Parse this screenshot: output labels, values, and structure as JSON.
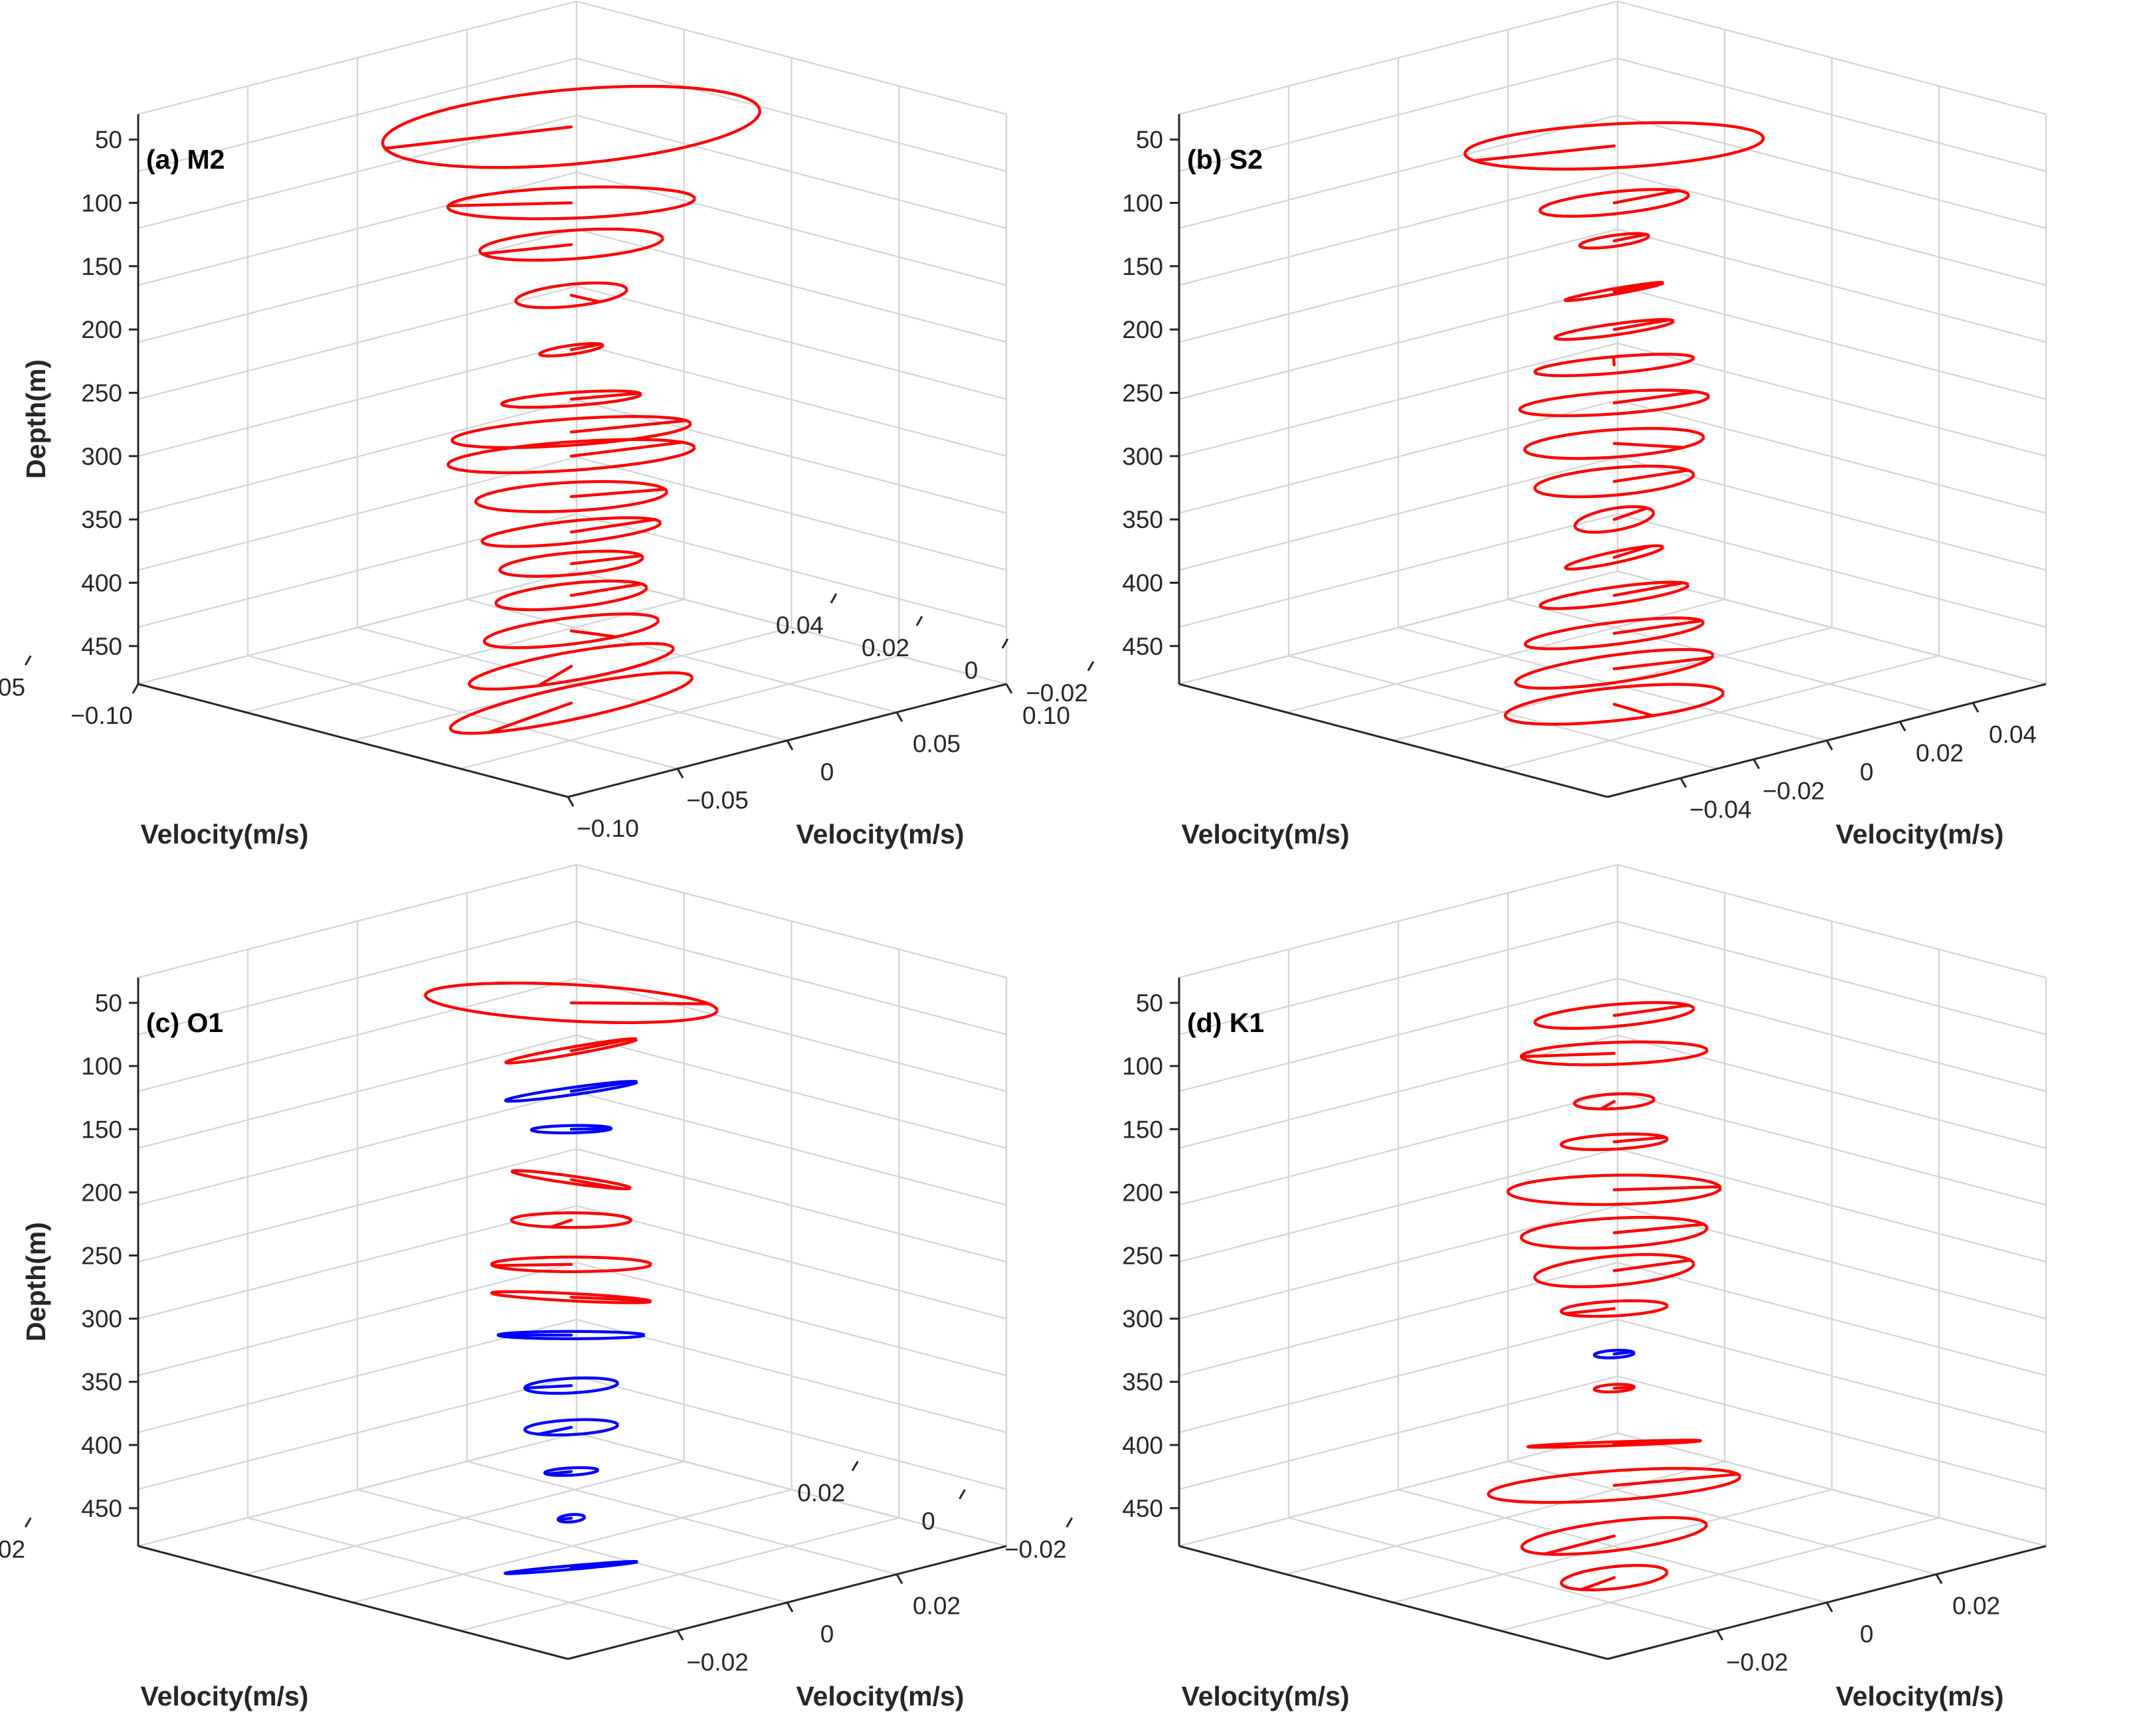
{
  "figure": {
    "colors": {
      "cw": "#ff0000",
      "ccw": "#0000ff",
      "grid": "#d6d6d6",
      "axis": "#262626"
    }
  },
  "chart_data": [
    {
      "type": "line",
      "subtype": "3d-tidal-current-ellipses",
      "title": "(a) M2",
      "zlabel": "Depth(m)",
      "xlabel": "Velocity(m/s)",
      "ylabel": "Velocity(m/s)",
      "zlim": [
        30,
        480
      ],
      "zticks": [
        "50",
        "100",
        "150",
        "200",
        "250",
        "300",
        "350",
        "400",
        "450"
      ],
      "xlim": [
        -0.1,
        0.1
      ],
      "xticks": [
        "−0.10",
        "−0.05",
        "0",
        "0.05",
        "0.10"
      ],
      "ylim": [
        -0.1,
        0.1
      ],
      "yticks": [
        "−0.10",
        "−0.05",
        "0",
        "0.05",
        "0.10"
      ],
      "ellipses": [
        {
          "depth": 40,
          "semi_major": 0.095,
          "semi_minor": 0.034,
          "inclination_deg": 5,
          "radius_angle_deg": 188,
          "rotation": "cw"
        },
        {
          "depth": 100,
          "semi_major": 0.062,
          "semi_minor": 0.014,
          "inclination_deg": 2,
          "radius_angle_deg": 175,
          "rotation": "cw"
        },
        {
          "depth": 133,
          "semi_major": 0.046,
          "semi_minor": 0.013,
          "inclination_deg": 4,
          "radius_angle_deg": 192,
          "rotation": "cw"
        },
        {
          "depth": 173,
          "semi_major": 0.028,
          "semi_minor": 0.01,
          "inclination_deg": 6,
          "radius_angle_deg": 300,
          "rotation": "cw"
        },
        {
          "depth": 216,
          "semi_major": 0.016,
          "semi_minor": 0.004,
          "inclination_deg": 8,
          "radius_angle_deg": 20,
          "rotation": "cw"
        },
        {
          "depth": 255,
          "semi_major": 0.035,
          "semi_minor": 0.006,
          "inclination_deg": 4,
          "radius_angle_deg": 10,
          "rotation": "cw"
        },
        {
          "depth": 281,
          "semi_major": 0.06,
          "semi_minor": 0.012,
          "inclination_deg": 4,
          "radius_angle_deg": 15,
          "rotation": "cw"
        },
        {
          "depth": 300,
          "semi_major": 0.062,
          "semi_minor": 0.013,
          "inclination_deg": 4,
          "radius_angle_deg": 25,
          "rotation": "cw"
        },
        {
          "depth": 332,
          "semi_major": 0.048,
          "semi_minor": 0.013,
          "inclination_deg": 3,
          "radius_angle_deg": 10,
          "rotation": "cw"
        },
        {
          "depth": 360,
          "semi_major": 0.045,
          "semi_minor": 0.01,
          "inclination_deg": 6,
          "radius_angle_deg": 20,
          "rotation": "cw"
        },
        {
          "depth": 385,
          "semi_major": 0.036,
          "semi_minor": 0.01,
          "inclination_deg": 5,
          "radius_angle_deg": 10,
          "rotation": "cw"
        },
        {
          "depth": 410,
          "semi_major": 0.038,
          "semi_minor": 0.011,
          "inclination_deg": 6,
          "radius_angle_deg": 20,
          "rotation": "cw"
        },
        {
          "depth": 438,
          "semi_major": 0.044,
          "semi_minor": 0.012,
          "inclination_deg": 7,
          "radius_angle_deg": 300,
          "rotation": "cw"
        },
        {
          "depth": 466,
          "semi_major": 0.052,
          "semi_minor": 0.013,
          "inclination_deg": 10,
          "radius_angle_deg": 250,
          "rotation": "cw"
        },
        {
          "depth": 495,
          "semi_major": 0.062,
          "semi_minor": 0.015,
          "inclination_deg": 12,
          "radius_angle_deg": 225,
          "rotation": "cw"
        }
      ]
    },
    {
      "type": "line",
      "subtype": "3d-tidal-current-ellipses",
      "title": "(b) S2",
      "zlabel": "",
      "xlabel": "Velocity(m/s)",
      "ylabel": "Velocity(m/s)",
      "zlim": [
        30,
        480
      ],
      "zticks": [
        "50",
        "100",
        "150",
        "200",
        "250",
        "300",
        "350",
        "400",
        "450"
      ],
      "xlim": [
        -0.04,
        0.04
      ],
      "xticks": [
        "−0.02",
        "0",
        "0.02",
        "0.04"
      ],
      "ylim": [
        -0.04,
        0.04
      ],
      "yticks": [
        "−0.04",
        "−0.02",
        "0",
        "0.02",
        "0.04"
      ],
      "ellipses": [
        {
          "depth": 55,
          "semi_major": 0.03,
          "semi_minor": 0.008,
          "inclination_deg": 3,
          "radius_angle_deg": 200,
          "rotation": "cw"
        },
        {
          "depth": 100,
          "semi_major": 0.015,
          "semi_minor": 0.004,
          "inclination_deg": 6,
          "radius_angle_deg": 30,
          "rotation": "cw"
        },
        {
          "depth": 130,
          "semi_major": 0.007,
          "semi_minor": 0.002,
          "inclination_deg": 8,
          "radius_angle_deg": 20,
          "rotation": "cw"
        },
        {
          "depth": 170,
          "semi_major": 0.01,
          "semi_minor": 0.001,
          "inclination_deg": 10,
          "radius_angle_deg": 20,
          "rotation": "cw"
        },
        {
          "depth": 200,
          "semi_major": 0.012,
          "semi_minor": 0.002,
          "inclination_deg": 8,
          "radius_angle_deg": 20,
          "rotation": "cw"
        },
        {
          "depth": 228,
          "semi_major": 0.016,
          "semi_minor": 0.003,
          "inclination_deg": 5,
          "radius_angle_deg": 90,
          "rotation": "cw"
        },
        {
          "depth": 258,
          "semi_major": 0.019,
          "semi_minor": 0.004,
          "inclination_deg": 4,
          "radius_angle_deg": 30,
          "rotation": "cw"
        },
        {
          "depth": 290,
          "semi_major": 0.018,
          "semi_minor": 0.005,
          "inclination_deg": 4,
          "radius_angle_deg": 320,
          "rotation": "cw"
        },
        {
          "depth": 320,
          "semi_major": 0.016,
          "semi_minor": 0.005,
          "inclination_deg": 5,
          "radius_angle_deg": 20,
          "rotation": "cw"
        },
        {
          "depth": 350,
          "semi_major": 0.008,
          "semi_minor": 0.004,
          "inclination_deg": 10,
          "radius_angle_deg": 30,
          "rotation": "cw"
        },
        {
          "depth": 380,
          "semi_major": 0.01,
          "semi_minor": 0.002,
          "inclination_deg": 12,
          "radius_angle_deg": 40,
          "rotation": "cw"
        },
        {
          "depth": 410,
          "semi_major": 0.015,
          "semi_minor": 0.003,
          "inclination_deg": 8,
          "radius_angle_deg": 20,
          "rotation": "cw"
        },
        {
          "depth": 440,
          "semi_major": 0.018,
          "semi_minor": 0.004,
          "inclination_deg": 7,
          "radius_angle_deg": 10,
          "rotation": "cw"
        },
        {
          "depth": 468,
          "semi_major": 0.02,
          "semi_minor": 0.005,
          "inclination_deg": 8,
          "radius_angle_deg": 350,
          "rotation": "cw"
        },
        {
          "depth": 496,
          "semi_major": 0.022,
          "semi_minor": 0.006,
          "inclination_deg": 6,
          "radius_angle_deg": 290,
          "rotation": "cw"
        }
      ]
    },
    {
      "type": "line",
      "subtype": "3d-tidal-current-ellipses",
      "title": "(c) O1",
      "zlabel": "Depth(m)",
      "xlabel": "Velocity(m/s)",
      "ylabel": "Velocity(m/s)",
      "zlim": [
        30,
        480
      ],
      "zticks": [
        "50",
        "100",
        "150",
        "200",
        "250",
        "300",
        "350",
        "400",
        "450"
      ],
      "xlim": [
        -0.03,
        0.03
      ],
      "xticks": [
        "−0.02",
        "0",
        "0.02"
      ],
      "ylim": [
        -0.03,
        0.03
      ],
      "yticks": [
        "−0.02",
        "0",
        "0.02"
      ],
      "ellipses": [
        {
          "depth": 50,
          "semi_major": 0.022,
          "semi_minor": 0.005,
          "inclination_deg": -3,
          "radius_angle_deg": 20,
          "rotation": "cw"
        },
        {
          "depth": 88,
          "semi_major": 0.01,
          "semi_minor": 0.001,
          "inclination_deg": 10,
          "radius_angle_deg": 20,
          "rotation": "cw"
        },
        {
          "depth": 120,
          "semi_major": 0.01,
          "semi_minor": 0.001,
          "inclination_deg": 8,
          "radius_angle_deg": 15,
          "rotation": "ccw"
        },
        {
          "depth": 150,
          "semi_major": 0.006,
          "semi_minor": 0.001,
          "inclination_deg": 1,
          "radius_angle_deg": 0,
          "rotation": "ccw"
        },
        {
          "depth": 190,
          "semi_major": 0.009,
          "semi_minor": 0.001,
          "inclination_deg": -8,
          "radius_angle_deg": 330,
          "rotation": "cw"
        },
        {
          "depth": 222,
          "semi_major": 0.009,
          "semi_minor": 0.002,
          "inclination_deg": 0,
          "radius_angle_deg": 250,
          "rotation": "cw"
        },
        {
          "depth": 257,
          "semi_major": 0.012,
          "semi_minor": 0.002,
          "inclination_deg": 0,
          "radius_angle_deg": 190,
          "rotation": "cw"
        },
        {
          "depth": 283,
          "semi_major": 0.012,
          "semi_minor": 0.001,
          "inclination_deg": -3,
          "radius_angle_deg": 10,
          "rotation": "cw"
        },
        {
          "depth": 313,
          "semi_major": 0.011,
          "semi_minor": 0.001,
          "inclination_deg": 0,
          "radius_angle_deg": 180,
          "rotation": "ccw"
        },
        {
          "depth": 353,
          "semi_major": 0.007,
          "semi_minor": 0.002,
          "inclination_deg": 3,
          "radius_angle_deg": 180,
          "rotation": "ccw"
        },
        {
          "depth": 386,
          "semi_major": 0.007,
          "semi_minor": 0.002,
          "inclination_deg": 3,
          "radius_angle_deg": 225,
          "rotation": "ccw"
        },
        {
          "depth": 421,
          "semi_major": 0.004,
          "semi_minor": 0.001,
          "inclination_deg": 3,
          "radius_angle_deg": 200,
          "rotation": "ccw"
        },
        {
          "depth": 458,
          "semi_major": 0.002,
          "semi_minor": 0.001,
          "inclination_deg": 5,
          "radius_angle_deg": 180,
          "rotation": "ccw"
        },
        {
          "depth": 497,
          "semi_major": 0.01,
          "semi_minor": 0.0005,
          "inclination_deg": 5,
          "radius_angle_deg": 10,
          "rotation": "ccw"
        }
      ]
    },
    {
      "type": "line",
      "subtype": "3d-tidal-current-ellipses",
      "title": "(d) K1",
      "zlabel": "",
      "xlabel": "Velocity(m/s)",
      "ylabel": "Velocity(m/s)",
      "zlim": [
        30,
        480
      ],
      "zticks": [
        "50",
        "100",
        "150",
        "200",
        "250",
        "300",
        "350",
        "400",
        "450"
      ],
      "xlim": [
        -0.03,
        0.03
      ],
      "xticks": [
        "−0.02",
        "0",
        "0.02"
      ],
      "ylim": [
        -0.03,
        0.03
      ],
      "yticks": [
        "−0.02",
        "0",
        "0.02"
      ],
      "ellipses": [
        {
          "depth": 60,
          "semi_major": 0.012,
          "semi_minor": 0.003,
          "inclination_deg": 5,
          "radius_angle_deg": 20,
          "rotation": "cw"
        },
        {
          "depth": 90,
          "semi_major": 0.014,
          "semi_minor": 0.003,
          "inclination_deg": 2,
          "radius_angle_deg": 180,
          "rotation": "cw"
        },
        {
          "depth": 128,
          "semi_major": 0.006,
          "semi_minor": 0.002,
          "inclination_deg": 3,
          "radius_angle_deg": 250,
          "rotation": "cw"
        },
        {
          "depth": 160,
          "semi_major": 0.008,
          "semi_minor": 0.002,
          "inclination_deg": 3,
          "radius_angle_deg": 15,
          "rotation": "cw"
        },
        {
          "depth": 198,
          "semi_major": 0.016,
          "semi_minor": 0.004,
          "inclination_deg": 1,
          "radius_angle_deg": 5,
          "rotation": "cw"
        },
        {
          "depth": 232,
          "semi_major": 0.014,
          "semi_minor": 0.004,
          "inclination_deg": 3,
          "radius_angle_deg": 15,
          "rotation": "cw"
        },
        {
          "depth": 262,
          "semi_major": 0.012,
          "semi_minor": 0.004,
          "inclination_deg": 5,
          "radius_angle_deg": 15,
          "rotation": "cw"
        },
        {
          "depth": 292,
          "semi_major": 0.008,
          "semi_minor": 0.002,
          "inclination_deg": 3,
          "radius_angle_deg": 200,
          "rotation": "cw"
        },
        {
          "depth": 328,
          "semi_major": 0.003,
          "semi_minor": 0.001,
          "inclination_deg": 3,
          "radius_angle_deg": 20,
          "rotation": "ccw"
        },
        {
          "depth": 355,
          "semi_major": 0.003,
          "semi_minor": 0.001,
          "inclination_deg": 3,
          "radius_angle_deg": 0,
          "rotation": "cw"
        },
        {
          "depth": 399,
          "semi_major": 0.013,
          "semi_minor": 0.0005,
          "inclination_deg": 2,
          "radius_angle_deg": 0,
          "rotation": "cw"
        },
        {
          "depth": 432,
          "semi_major": 0.019,
          "semi_minor": 0.004,
          "inclination_deg": 4,
          "radius_angle_deg": 10,
          "rotation": "cw"
        },
        {
          "depth": 472,
          "semi_major": 0.014,
          "semi_minor": 0.004,
          "inclination_deg": 7,
          "radius_angle_deg": 220,
          "rotation": "cw"
        },
        {
          "depth": 505,
          "semi_major": 0.008,
          "semi_minor": 0.003,
          "inclination_deg": 6,
          "radius_angle_deg": 230,
          "rotation": "cw"
        }
      ]
    }
  ]
}
